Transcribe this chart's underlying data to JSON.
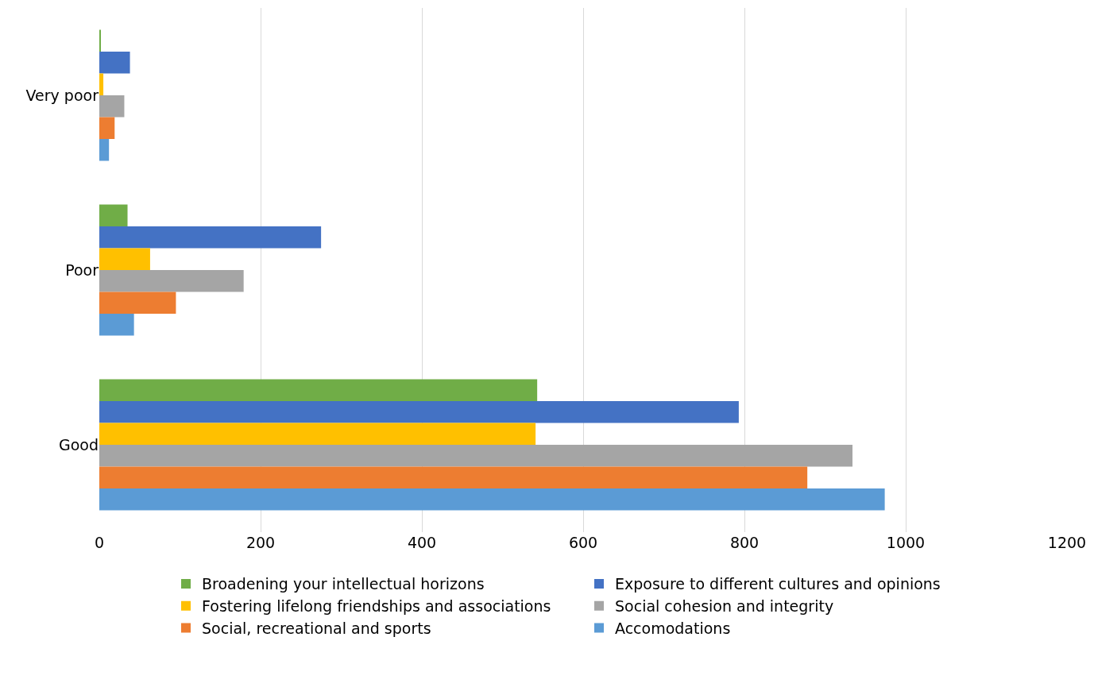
{
  "chart_data": {
    "type": "bar",
    "orientation": "horizontal",
    "categories": [
      "Very poor",
      "Poor",
      "Good"
    ],
    "series": [
      {
        "name": "Broadening your intellectual horizons",
        "color": "#70ad47",
        "values": [
          2,
          35,
          543
        ]
      },
      {
        "name": "Exposure to different cultures and opinions",
        "color": "#4472c4",
        "values": [
          38,
          275,
          793
        ]
      },
      {
        "name": "Fostering lifelong friendships and associations",
        "color": "#ffc000",
        "values": [
          5,
          63,
          541
        ]
      },
      {
        "name": "Social cohesion and integrity",
        "color": "#a5a5a5",
        "values": [
          31,
          179,
          934
        ]
      },
      {
        "name": "Social, recreational and sports",
        "color": "#ed7d31",
        "values": [
          19,
          95,
          878
        ]
      },
      {
        "name": "Accomodations",
        "color": "#5b9bd5",
        "values": [
          12,
          43,
          974
        ]
      }
    ],
    "xlim": [
      0,
      1200
    ],
    "xticks": [
      0,
      200,
      400,
      600,
      800,
      1000,
      1200
    ],
    "grid": "x",
    "legend": "bottom"
  }
}
